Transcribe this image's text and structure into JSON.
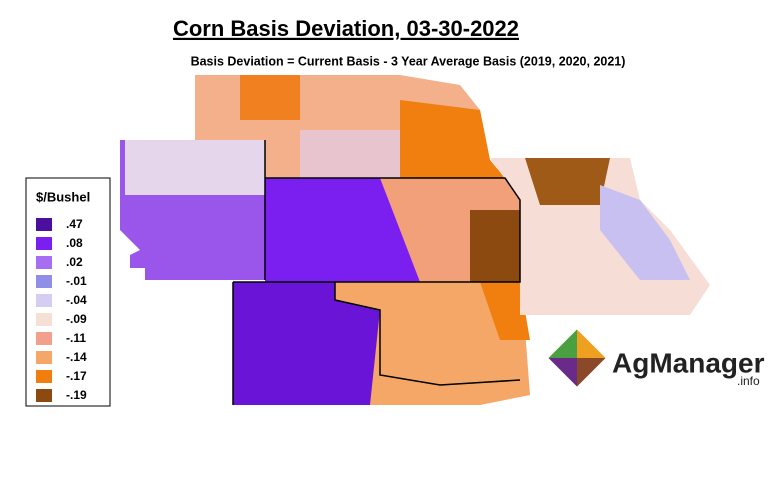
{
  "header": {
    "title": "Corn Basis Deviation, 03-30-2022",
    "subtitle": "Basis Deviation = Current Basis - 3 Year Average Basis (2019, 2020, 2021)"
  },
  "legend": {
    "title": "$/Bushel",
    "items": [
      {
        "label": ".47",
        "color": "#4b0f9e"
      },
      {
        "label": ".08",
        "color": "#7a1ff0"
      },
      {
        "label": ".02",
        "color": "#a66ef0"
      },
      {
        "label": "-.01",
        "color": "#8f8fe8"
      },
      {
        "label": "-.04",
        "color": "#d6cdf2"
      },
      {
        "label": "-.09",
        "color": "#f6e0d6"
      },
      {
        "label": "-.11",
        "color": "#f2a08c"
      },
      {
        "label": "-.14",
        "color": "#f4a766"
      },
      {
        "label": "-.17",
        "color": "#f07f10"
      },
      {
        "label": "-.19",
        "color": "#8c4a10"
      }
    ]
  },
  "logo": {
    "name": "AgManager",
    "suffix": ".info"
  }
}
